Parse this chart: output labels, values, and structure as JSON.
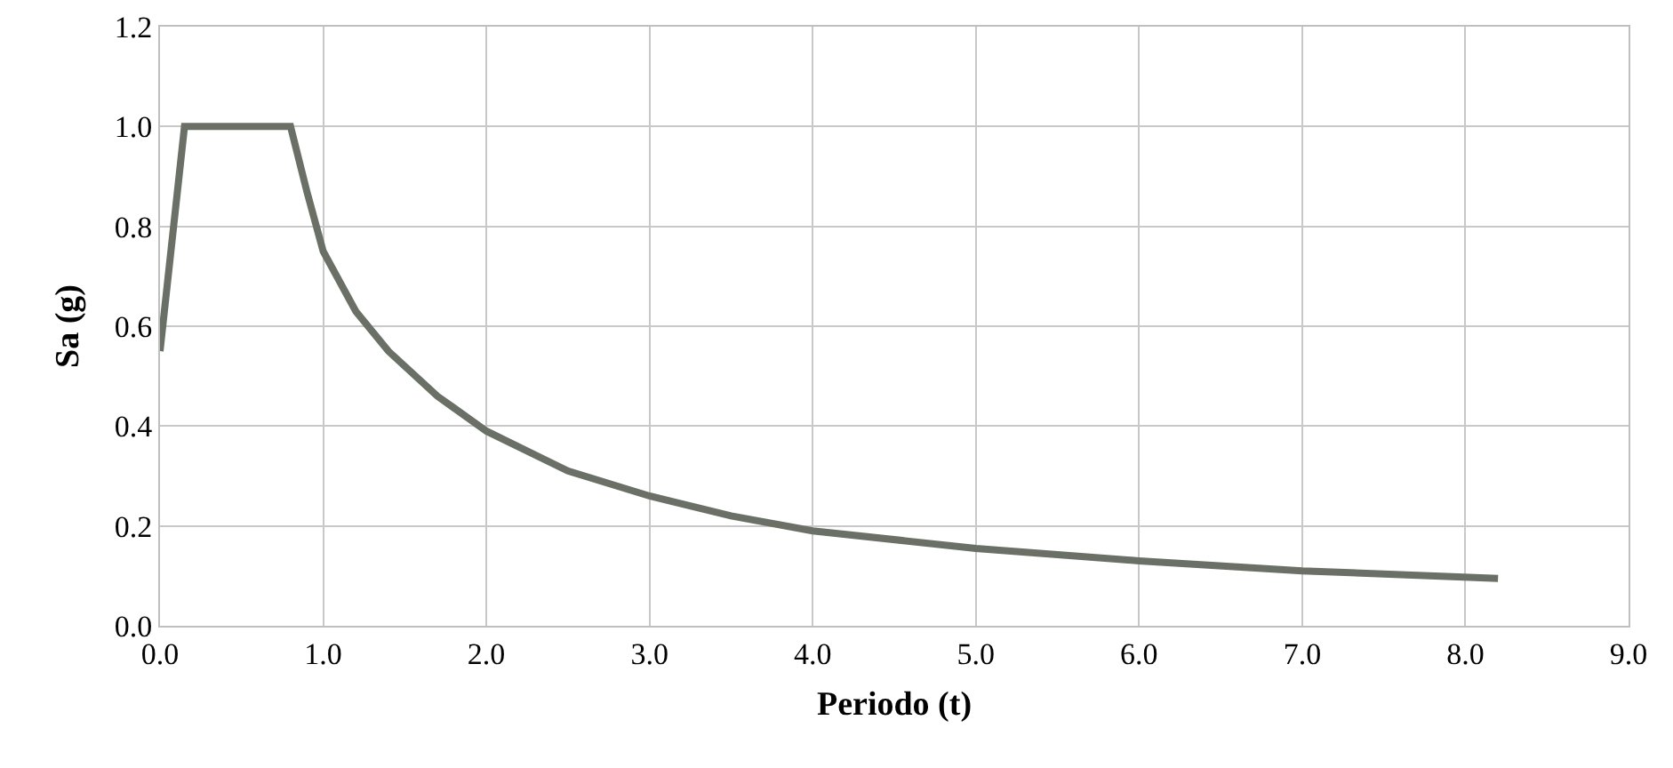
{
  "chart_data": {
    "type": "line",
    "xlabel": "Periodo (t)",
    "ylabel": "Sa (g)",
    "x": [
      0,
      0.15,
      0.8,
      0.9,
      1.0,
      1.2,
      1.4,
      1.7,
      2.0,
      2.5,
      3.0,
      3.5,
      4.0,
      5.0,
      6.0,
      7.0,
      8.2
    ],
    "series": [
      {
        "color": "#6b7067",
        "values": [
          0.55,
          1.0,
          1.0,
          0.87,
          0.75,
          0.63,
          0.55,
          0.46,
          0.39,
          0.31,
          0.26,
          0.22,
          0.19,
          0.155,
          0.13,
          0.11,
          0.095
        ]
      }
    ],
    "xlim": [
      0,
      9
    ],
    "xticks": [
      {
        "value": 0,
        "label": "0.0"
      },
      {
        "value": 1,
        "label": "1.0"
      },
      {
        "value": 2,
        "label": "2.0"
      },
      {
        "value": 3,
        "label": "3.0"
      },
      {
        "value": 4,
        "label": "4.0"
      },
      {
        "value": 5,
        "label": "5.0"
      },
      {
        "value": 6,
        "label": "6.0"
      },
      {
        "value": 7,
        "label": "7.0"
      },
      {
        "value": 8,
        "label": "8.0"
      },
      {
        "value": 9,
        "label": "9.0"
      }
    ],
    "ylim": [
      0,
      1.2
    ],
    "yticks": [
      {
        "value": 0,
        "label": "0.0"
      },
      {
        "value": 0.2,
        "label": "0.2"
      },
      {
        "value": 0.4,
        "label": "0.4"
      },
      {
        "value": 0.6,
        "label": "0.6"
      },
      {
        "value": 0.8,
        "label": "0.8"
      },
      {
        "value": 1.0,
        "label": "1.0"
      },
      {
        "value": 1.2,
        "label": "1.2"
      }
    ],
    "grid": true,
    "marker": "none",
    "line_style": "solid"
  }
}
